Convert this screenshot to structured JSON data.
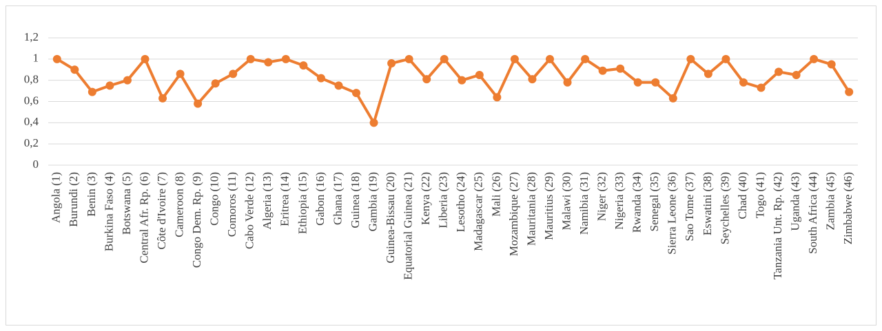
{
  "chart_data": {
    "type": "line",
    "color": "#ed7d31",
    "grid": true,
    "categories": [
      "Angola (1)",
      "Burundi (2)",
      "Benin (3)",
      "Burkina Faso (4)",
      "Botswana (5)",
      "Central Afr. Rp. (6)",
      "Côte d'Ivoire (7)",
      "Cameroon (8)",
      "Congo Dem. Rp. (9)",
      "Congo (10)",
      "Comoros (11)",
      "Cabo Verde (12)",
      "Algeria (13)",
      "Eritrea (14)",
      "Ethiopia (15)",
      "Gabon (16)",
      "Ghana (17)",
      "Guinea (18)",
      "Gambia (19)",
      "Guinea-Bissau (20)",
      "Equatorial Guinea (21)",
      "Kenya (22)",
      "Liberia (23)",
      "Lesotho (24)",
      "Madagascar (25)",
      "Mali (26)",
      "Mozambique (27)",
      "Mauritania (28)",
      "Mauritius (29)",
      "Malawi (30)",
      "Namibia (31)",
      "Niger (32)",
      "Nigeria (33)",
      "Rwanda (34)",
      "Senegal (35)",
      "Sierra Leone (36)",
      "Sao Tome (37)",
      "Eswatini (38)",
      "Seychelles (39)",
      "Chad (40)",
      "Togo (41)",
      "Tanzania Unt. Rp. (42)",
      "Uganda (43)",
      "South Africa (44)",
      "Zambia (45)",
      "Zimbabwe (46)"
    ],
    "values": [
      1,
      0.9,
      0.69,
      0.75,
      0.8,
      1,
      0.63,
      0.86,
      0.58,
      0.77,
      0.86,
      1,
      0.97,
      1,
      0.94,
      0.82,
      0.75,
      0.68,
      0.4,
      0.96,
      1,
      0.81,
      1,
      0.8,
      0.85,
      0.64,
      1,
      0.81,
      1,
      0.78,
      1,
      0.89,
      0.91,
      0.78,
      0.78,
      0.63,
      1,
      0.86,
      1,
      0.78,
      0.73,
      0.88,
      0.85,
      1,
      0.95,
      0.69
    ],
    "ylim": [
      0,
      1.2
    ],
    "yticks": [
      0,
      {
        "value": 0.2,
        "label": "0,2"
      },
      {
        "value": 0.4,
        "label": "0,4"
      },
      {
        "value": 0.6,
        "label": "0,6"
      },
      {
        "value": 0.8,
        "label": "0,8"
      },
      1,
      {
        "value": 1.2,
        "label": "1,2"
      }
    ]
  }
}
